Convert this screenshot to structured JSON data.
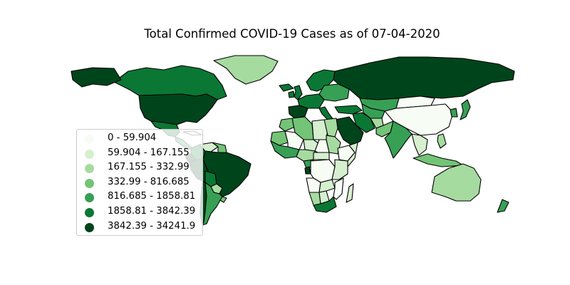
{
  "title": "Total Confirmed COVID-19 Cases as of 07-04-2020",
  "colors": {
    "bin0": "#f7fcf5",
    "bin1": "#d5efcf",
    "bin2": "#a6dba0",
    "bin3": "#73c476",
    "bin4": "#37a055",
    "bin5": "#0b7734",
    "bin6": "#00441b"
  },
  "legend": [
    {
      "label": "0 - 59.904",
      "color": "#f7fcf5"
    },
    {
      "label": "59.904 - 167.155",
      "color": "#d5efcf"
    },
    {
      "label": "167.155 - 332.99",
      "color": "#a6dba0"
    },
    {
      "label": "332.99 - 816.685",
      "color": "#73c476"
    },
    {
      "label": "816.685 - 1858.81",
      "color": "#37a055"
    },
    {
      "label": "1858.81 - 3842.39",
      "color": "#0b7734"
    },
    {
      "label": "3842.39 - 34241.9",
      "color": "#00441b"
    }
  ],
  "legend_placement": "lower-left",
  "chart_data": {
    "type": "choropleth",
    "title": "Total Confirmed COVID-19 Cases as of 07-04-2020",
    "bins": [
      {
        "min": 0,
        "max": 59.904
      },
      {
        "min": 59.904,
        "max": 167.155
      },
      {
        "min": 167.155,
        "max": 332.99
      },
      {
        "min": 332.99,
        "max": 816.685
      },
      {
        "min": 816.685,
        "max": 1858.81
      },
      {
        "min": 1858.81,
        "max": 3842.39
      },
      {
        "min": 3842.39,
        "max": 34241.9
      }
    ],
    "colormap": "Greens",
    "regions": [
      {
        "name": "Canada",
        "bin": 5
      },
      {
        "name": "United States",
        "bin": 6
      },
      {
        "name": "Alaska",
        "bin": 6
      },
      {
        "name": "Greenland",
        "bin": 2
      },
      {
        "name": "Mexico",
        "bin": 5
      },
      {
        "name": "Central America",
        "bin": 4
      },
      {
        "name": "Cuba",
        "bin": 1
      },
      {
        "name": "Colombia",
        "bin": 5
      },
      {
        "name": "Venezuela",
        "bin": 1
      },
      {
        "name": "Guyana region",
        "bin": 3
      },
      {
        "name": "Ecuador",
        "bin": 6
      },
      {
        "name": "Peru",
        "bin": 6
      },
      {
        "name": "Brazil",
        "bin": 6
      },
      {
        "name": "Bolivia",
        "bin": 5
      },
      {
        "name": "Paraguay",
        "bin": 2
      },
      {
        "name": "Chile",
        "bin": 6
      },
      {
        "name": "Argentina",
        "bin": 4
      },
      {
        "name": "Uruguay",
        "bin": 3
      },
      {
        "name": "Iceland",
        "bin": 5
      },
      {
        "name": "United Kingdom",
        "bin": 5
      },
      {
        "name": "Ireland",
        "bin": 5
      },
      {
        "name": "Scandinavia",
        "bin": 5
      },
      {
        "name": "Western Europe",
        "bin": 5
      },
      {
        "name": "Eastern Europe",
        "bin": 4
      },
      {
        "name": "Spain",
        "bin": 6
      },
      {
        "name": "Italy",
        "bin": 5
      },
      {
        "name": "Turkey",
        "bin": 5
      },
      {
        "name": "Russia",
        "bin": 6
      },
      {
        "name": "Kazakhstan",
        "bin": 4
      },
      {
        "name": "Mongolia",
        "bin": 0
      },
      {
        "name": "China",
        "bin": 0
      },
      {
        "name": "Japan",
        "bin": 4
      },
      {
        "name": "Korea",
        "bin": 4
      },
      {
        "name": "Iran",
        "bin": 5
      },
      {
        "name": "Saudi Arabia",
        "bin": 6
      },
      {
        "name": "Central Asia",
        "bin": 4
      },
      {
        "name": "Afghanistan",
        "bin": 2
      },
      {
        "name": "Pakistan",
        "bin": 3
      },
      {
        "name": "India",
        "bin": 4
      },
      {
        "name": "Southeast Asia",
        "bin": 1
      },
      {
        "name": "Indonesia",
        "bin": 3
      },
      {
        "name": "Philippines",
        "bin": 2
      },
      {
        "name": "Australia",
        "bin": 2
      },
      {
        "name": "New Zealand",
        "bin": 4
      },
      {
        "name": "Morocco",
        "bin": 3
      },
      {
        "name": "Algeria",
        "bin": 3
      },
      {
        "name": "Libya",
        "bin": 1
      },
      {
        "name": "Egypt",
        "bin": 2
      },
      {
        "name": "Mauritania",
        "bin": 3
      },
      {
        "name": "Mali",
        "bin": 0
      },
      {
        "name": "Niger",
        "bin": 1
      },
      {
        "name": "Chad",
        "bin": 0
      },
      {
        "name": "Sudan",
        "bin": 2
      },
      {
        "name": "Ethiopia",
        "bin": 0
      },
      {
        "name": "Somalia",
        "bin": 1
      },
      {
        "name": "West Africa",
        "bin": 4
      },
      {
        "name": "Nigeria",
        "bin": 2
      },
      {
        "name": "Cameroon",
        "bin": 4
      },
      {
        "name": "Gabon",
        "bin": 6
      },
      {
        "name": "Central African Republic",
        "bin": 1
      },
      {
        "name": "DR Congo",
        "bin": 0
      },
      {
        "name": "East Africa",
        "bin": 1
      },
      {
        "name": "Angola",
        "bin": 0
      },
      {
        "name": "Zambia",
        "bin": 1
      },
      {
        "name": "Namibia",
        "bin": 2
      },
      {
        "name": "Botswana",
        "bin": 1
      },
      {
        "name": "South Africa",
        "bin": 5
      },
      {
        "name": "Mozambique",
        "bin": 0
      },
      {
        "name": "Madagascar",
        "bin": 1
      }
    ]
  }
}
